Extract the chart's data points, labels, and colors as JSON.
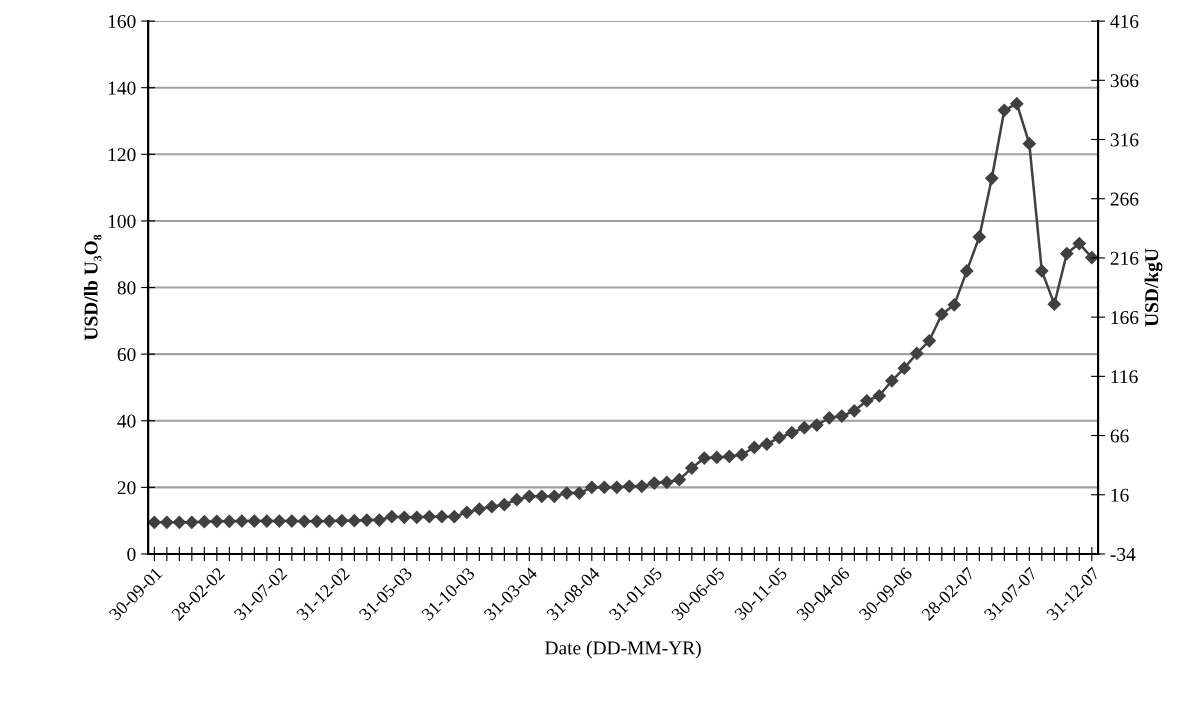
{
  "chart_data": {
    "type": "line",
    "xlabel": "Date (DD-MM-YR)",
    "ylabel": "USD/lb U₃O₈",
    "y2label": "USD/kgU",
    "categories": [
      "30-09-01",
      null,
      null,
      null,
      null,
      "28-02-02",
      null,
      null,
      null,
      null,
      "31-07-02",
      null,
      null,
      null,
      null,
      "31-12-02",
      null,
      null,
      null,
      null,
      "31-05-03",
      null,
      null,
      null,
      null,
      "31-10-03",
      null,
      null,
      null,
      null,
      "31-03-04",
      null,
      null,
      null,
      null,
      "31-08-04",
      null,
      null,
      null,
      null,
      "31-01-05",
      null,
      null,
      null,
      null,
      "30-06-05",
      null,
      null,
      null,
      null,
      "30-11-05",
      null,
      null,
      null,
      null,
      "30-04-06",
      null,
      null,
      null,
      null,
      "30-09-06",
      null,
      null,
      null,
      null,
      "28-02-07",
      null,
      null,
      null,
      null,
      "31-07-07",
      null,
      null,
      null,
      null,
      "31-12-07"
    ],
    "series": [
      {
        "color": "#404040",
        "values": [
          9.5,
          9.5,
          9.5,
          9.5,
          9.7,
          9.8,
          9.8,
          9.9,
          9.9,
          9.9,
          9.9,
          9.9,
          9.8,
          9.8,
          9.9,
          10,
          10,
          10.2,
          10.2,
          11.2,
          11,
          11,
          11.2,
          11.2,
          11.2,
          12.5,
          13.5,
          14.2,
          14.8,
          16.3,
          17.3,
          17.3,
          17.3,
          18.3,
          18.3,
          20,
          20,
          20,
          20.3,
          20.3,
          21.3,
          21.5,
          22.3,
          25.8,
          28.8,
          29,
          29.3,
          29.8,
          32,
          33,
          34.9,
          36.4,
          37.9,
          38.7,
          40.9,
          41.4,
          43,
          46,
          47.5,
          52,
          55.8,
          60.2,
          64,
          72,
          74.8,
          85,
          95.2,
          112.8,
          133.2,
          135.2,
          123.2,
          85,
          75,
          90.2,
          93.2,
          89
        ]
      }
    ],
    "ylim": [
      0,
      160
    ],
    "yticks": [
      0,
      20,
      40,
      60,
      80,
      100,
      120,
      140,
      160
    ],
    "y2lim": [
      -34,
      416
    ],
    "y2ticks": [
      -34,
      16,
      66,
      116,
      166,
      216,
      266,
      316,
      366,
      416
    ],
    "grid": "y",
    "marker": "diamond",
    "line_style": "solid",
    "legend": false
  }
}
